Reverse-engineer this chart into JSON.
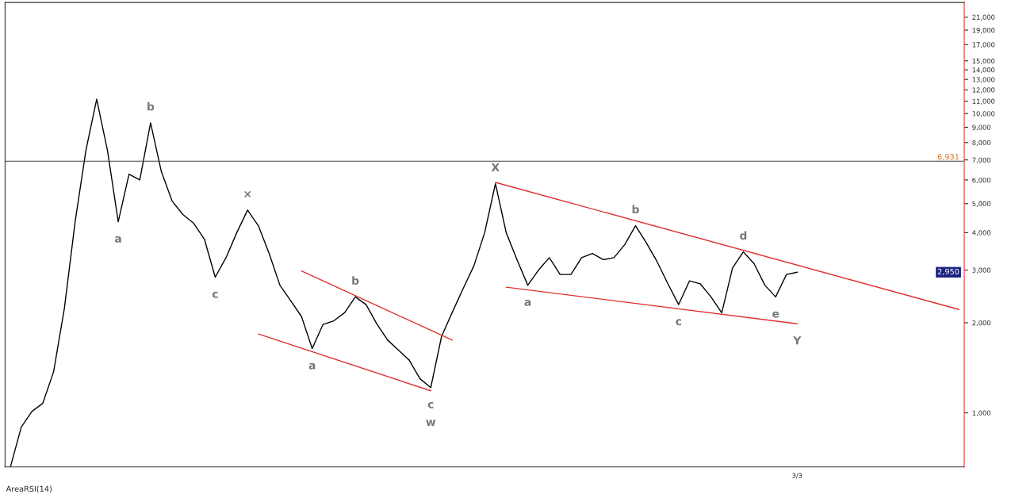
{
  "chart_data": {
    "type": "line",
    "log": "y",
    "grid": false,
    "legend": false,
    "categories": [
      null,
      null,
      null,
      null,
      null,
      null,
      null,
      null,
      null,
      null,
      null,
      null,
      null,
      null,
      null,
      null,
      null,
      null,
      null,
      null,
      null,
      null,
      null,
      null,
      null,
      null,
      null,
      null,
      null,
      null,
      null,
      null,
      null,
      null,
      null,
      null,
      null,
      null,
      null,
      null,
      null,
      null,
      null,
      null,
      null,
      null,
      null,
      null,
      null,
      null,
      null,
      null,
      null,
      null,
      null,
      null,
      null,
      null,
      null,
      null,
      null,
      null,
      null,
      null,
      null,
      null,
      null,
      null,
      null,
      null,
      null,
      null,
      null,
      "3/3",
      null,
      null,
      null,
      null,
      null,
      null,
      null,
      null,
      null,
      null,
      null,
      null,
      null,
      null,
      null
    ],
    "ylim": [
      660,
      23500
    ],
    "yticks": [
      {
        "value": 1000,
        "label": "1,000"
      },
      {
        "value": 2000,
        "label": "2,000"
      },
      {
        "value": 3000,
        "label": "3,000"
      },
      {
        "value": 4000,
        "label": "4,000"
      },
      {
        "value": 5000,
        "label": "5,000"
      },
      {
        "value": 6000,
        "label": "6,000"
      },
      {
        "value": 7000,
        "label": "7,000"
      },
      {
        "value": 8000,
        "label": "8,000"
      },
      {
        "value": 9000,
        "label": "9,000"
      },
      {
        "value": 10000,
        "label": "10,000"
      },
      {
        "value": 11000,
        "label": "11,000"
      },
      {
        "value": 12000,
        "label": "12,000"
      },
      {
        "value": 13000,
        "label": "13,000"
      },
      {
        "value": 14000,
        "label": "14,000"
      },
      {
        "value": 15000,
        "label": "15,000"
      },
      {
        "value": 17000,
        "label": "17,000"
      },
      {
        "value": 19000,
        "label": "19,000"
      },
      {
        "value": 21000,
        "label": "21,000"
      }
    ],
    "series": [
      {
        "color": "#000000",
        "values": [
          660,
          896,
          1012,
          1076,
          1371,
          2230,
          4350,
          7530,
          11170,
          7530,
          4350,
          6270,
          6000,
          9310,
          6400,
          5100,
          4600,
          4300,
          3800,
          2840,
          3300,
          4000,
          4760,
          4220,
          3410,
          2670,
          2370,
          2100,
          1640,
          1975,
          2030,
          2160,
          2440,
          2300,
          1980,
          1750,
          1620,
          1500,
          1300,
          1215,
          1800,
          2170,
          2600,
          3100,
          4000,
          5830,
          4000,
          3250,
          2670,
          3000,
          3300,
          2900,
          2900,
          3300,
          3410,
          3250,
          3300,
          3650,
          4220,
          3700,
          3200,
          2700,
          2300,
          2760,
          2700,
          2440,
          2160,
          3050,
          3450,
          3150,
          2670,
          2440,
          2900,
          2950,
          null,
          null,
          null,
          null,
          null,
          null,
          null,
          null,
          null,
          null,
          null,
          null,
          null,
          null,
          null
        ],
        "value_labels": [
          null,
          null,
          null,
          null,
          null,
          null,
          null,
          null,
          null,
          null,
          "a",
          null,
          null,
          "b",
          null,
          null,
          null,
          null,
          null,
          "c",
          null,
          null,
          "×",
          null,
          null,
          null,
          null,
          null,
          "a",
          null,
          null,
          null,
          "b",
          null,
          null,
          null,
          null,
          null,
          null,
          "c",
          null,
          null,
          null,
          null,
          null,
          "X",
          null,
          null,
          "a",
          null,
          null,
          null,
          null,
          null,
          null,
          null,
          null,
          null,
          "b",
          null,
          null,
          null,
          "c",
          null,
          null,
          null,
          null,
          null,
          "d",
          null,
          null,
          "e",
          null,
          null,
          null,
          null,
          null,
          null,
          null,
          null,
          null,
          null,
          null,
          null,
          null,
          null,
          null,
          null,
          null
        ]
      },
      {
        "color": "#e03030",
        "values": [
          null,
          null,
          null,
          null,
          null,
          null,
          null,
          null,
          null,
          null,
          null,
          null,
          null,
          null,
          null,
          null,
          null,
          null,
          null,
          null,
          null,
          null,
          null,
          null,
          null,
          null,
          null,
          null,
          null,
          null,
          null,
          null,
          null,
          null,
          null,
          null,
          null,
          null,
          null,
          null,
          null,
          null,
          null,
          null,
          null,
          5890,
          null,
          null,
          null,
          null,
          null,
          null,
          null,
          null,
          null,
          null,
          null,
          null,
          null,
          null,
          null,
          null,
          null,
          null,
          null,
          null,
          null,
          null,
          null,
          null,
          null,
          null,
          null,
          null,
          null,
          null,
          null,
          null,
          null,
          null,
          null,
          null,
          null,
          null,
          null,
          null,
          null,
          null,
          2215
        ]
      },
      {
        "color": "#e03030",
        "values": [
          null,
          null,
          null,
          null,
          null,
          null,
          null,
          null,
          null,
          null,
          null,
          null,
          null,
          null,
          null,
          null,
          null,
          null,
          null,
          null,
          null,
          null,
          null,
          null,
          null,
          null,
          null,
          null,
          null,
          null,
          null,
          null,
          null,
          null,
          null,
          null,
          null,
          null,
          null,
          null,
          null,
          null,
          null,
          null,
          null,
          null,
          2630,
          null,
          null,
          null,
          null,
          null,
          null,
          null,
          null,
          null,
          null,
          null,
          null,
          null,
          null,
          null,
          null,
          null,
          null,
          null,
          null,
          null,
          null,
          null,
          null,
          null,
          null,
          1985,
          null,
          null,
          null,
          null,
          null,
          null,
          null,
          null,
          null,
          null,
          null,
          null,
          null,
          null,
          null
        ],
        "value_labels": [
          null,
          null,
          null,
          null,
          null,
          null,
          null,
          null,
          null,
          null,
          null,
          null,
          null,
          null,
          null,
          null,
          null,
          null,
          null,
          null,
          null,
          null,
          null,
          null,
          null,
          null,
          null,
          null,
          null,
          null,
          null,
          null,
          null,
          null,
          null,
          null,
          null,
          null,
          null,
          null,
          null,
          null,
          null,
          null,
          null,
          null,
          null,
          null,
          null,
          null,
          null,
          null,
          null,
          null,
          null,
          null,
          null,
          null,
          null,
          null,
          null,
          null,
          null,
          null,
          null,
          null,
          null,
          null,
          null,
          null,
          null,
          null,
          null,
          "Y",
          null,
          null,
          null,
          null,
          null,
          null,
          null,
          null,
          null,
          null,
          null,
          null,
          null,
          null,
          null
        ]
      },
      {
        "color": "#e03030",
        "values": [
          null,
          null,
          null,
          null,
          null,
          null,
          null,
          null,
          null,
          null,
          null,
          null,
          null,
          null,
          null,
          null,
          null,
          null,
          null,
          null,
          null,
          null,
          null,
          null,
          null,
          null,
          null,
          2980,
          null,
          null,
          null,
          null,
          null,
          null,
          null,
          null,
          null,
          null,
          null,
          null,
          null,
          1750,
          null,
          null,
          null,
          null,
          null,
          null,
          null,
          null,
          null,
          null,
          null,
          null,
          null,
          null,
          null,
          null,
          null,
          null,
          null,
          null,
          null,
          null,
          null,
          null,
          null,
          null,
          null,
          null,
          null,
          null,
          null,
          null,
          null,
          null,
          null,
          null,
          null,
          null,
          null,
          null,
          null,
          null,
          null,
          null,
          null,
          null,
          null
        ]
      },
      {
        "color": "#e03030",
        "values": [
          null,
          null,
          null,
          null,
          null,
          null,
          null,
          null,
          null,
          null,
          null,
          null,
          null,
          null,
          null,
          null,
          null,
          null,
          null,
          null,
          null,
          null,
          null,
          1835,
          null,
          null,
          null,
          null,
          null,
          null,
          null,
          null,
          null,
          null,
          null,
          null,
          null,
          null,
          null,
          1185,
          null,
          null,
          null,
          null,
          null,
          null,
          null,
          null,
          null,
          null,
          null,
          null,
          null,
          null,
          null,
          null,
          null,
          null,
          null,
          null,
          null,
          null,
          null,
          null,
          null,
          null,
          null,
          null,
          null,
          null,
          null,
          null,
          null,
          null,
          null,
          null,
          null,
          null,
          null,
          null,
          null,
          null,
          null,
          null,
          null,
          null,
          null,
          null,
          null
        ],
        "value_labels": [
          null,
          null,
          null,
          null,
          null,
          null,
          null,
          null,
          null,
          null,
          null,
          null,
          null,
          null,
          null,
          null,
          null,
          null,
          null,
          null,
          null,
          null,
          null,
          null,
          null,
          null,
          null,
          null,
          null,
          null,
          null,
          null,
          null,
          null,
          null,
          null,
          null,
          null,
          null,
          "w",
          null,
          null,
          null,
          null,
          null,
          null,
          null,
          null,
          null,
          null,
          null,
          null,
          null,
          null,
          null,
          null,
          null,
          null,
          null,
          null,
          null,
          null,
          null,
          null,
          null,
          null,
          null,
          null,
          null,
          null,
          null,
          null,
          null,
          null,
          null,
          null,
          null,
          null,
          null,
          null,
          null,
          null,
          null,
          null,
          null,
          null,
          null,
          null,
          null
        ]
      }
    ],
    "ref_lines": [
      {
        "axis": "y",
        "value": 6931,
        "label": "6,931",
        "color": "#404040"
      }
    ],
    "annotations": [
      {
        "text": "2,950",
        "y": 2950
      },
      "AreaRSI(14)"
    ]
  }
}
